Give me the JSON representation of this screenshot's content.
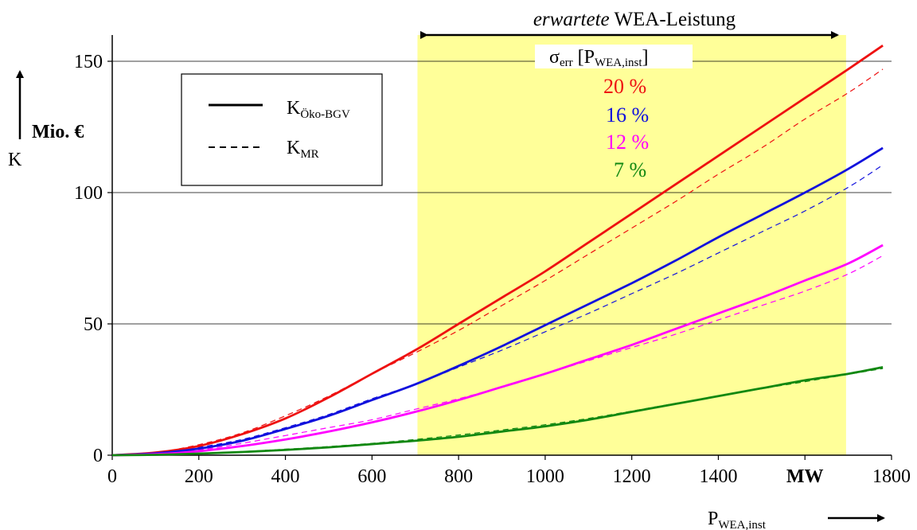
{
  "chart_data": {
    "type": "line",
    "x_ticks": [
      "0",
      "200",
      "400",
      "600",
      "800",
      "1000",
      "1200",
      "1400",
      "MW",
      "1800"
    ],
    "x_tick_values": [
      0,
      200,
      400,
      600,
      800,
      1000,
      1200,
      1400,
      1600,
      1800
    ],
    "y_ticks": [
      "0",
      "50",
      "100",
      "150"
    ],
    "y_tick_values": [
      0,
      50,
      100,
      150
    ],
    "xlim": [
      0,
      1800
    ],
    "ylim": [
      0,
      160
    ],
    "grid": {
      "horizontal": true,
      "values": [
        50,
        100,
        150
      ]
    },
    "ylabel": {
      "unit": "Mio. €",
      "symbol": "K"
    },
    "xlabel": {
      "base": "P",
      "sub": "WEA,inst"
    },
    "highlight": {
      "x_range": [
        705,
        1695
      ],
      "color": "#ffff99",
      "label_italic": "erwartete",
      "label_rest": " WEA-Leistung",
      "sigma_base": "σ",
      "sigma_sub": "err",
      "sigma_bracket_open": " [P",
      "sigma_bracket_sub": "WEA,inst",
      "sigma_bracket_close": "]"
    },
    "legend": {
      "position": "top-left",
      "solid": {
        "base": "K",
        "sub": "Öko-BGV"
      },
      "dashed": {
        "base": "K",
        "sub": "MR"
      }
    },
    "sigma_levels": [
      "20 %",
      "16 %",
      "12 %",
      "7 %"
    ],
    "series": [
      {
        "sigma": "20 %",
        "color": "#ee1111",
        "style": "solid",
        "x": [
          0,
          100,
          200,
          300,
          400,
          500,
          600,
          700,
          800,
          900,
          1000,
          1100,
          1200,
          1300,
          1400,
          1500,
          1600,
          1700,
          1780
        ],
        "y": [
          0,
          1,
          3.5,
          8,
          14,
          22,
          31,
          40,
          50,
          60,
          70,
          81,
          92,
          103,
          114,
          125,
          136,
          147,
          156
        ]
      },
      {
        "sigma": "20 %",
        "color": "#ee1111",
        "style": "dashed",
        "x": [
          0,
          100,
          200,
          300,
          400,
          500,
          600,
          700,
          800,
          900,
          1000,
          1100,
          1200,
          1300,
          1400,
          1500,
          1600,
          1700,
          1780
        ],
        "y": [
          0,
          1,
          4,
          8.5,
          15,
          22.5,
          31,
          39,
          47.5,
          57,
          66.5,
          76.5,
          86.5,
          96.5,
          107,
          117,
          128,
          138,
          147
        ]
      },
      {
        "sigma": "16 %",
        "color": "#1111dd",
        "style": "solid",
        "x": [
          0,
          100,
          200,
          300,
          400,
          500,
          600,
          700,
          800,
          900,
          1000,
          1100,
          1200,
          1300,
          1400,
          1500,
          1600,
          1700,
          1780
        ],
        "y": [
          0,
          0.7,
          2.5,
          5.5,
          10,
          15,
          21,
          27,
          34,
          41.5,
          49.5,
          57.5,
          65.5,
          74,
          83,
          91.5,
          100,
          109,
          117
        ]
      },
      {
        "sigma": "16 %",
        "color": "#1111dd",
        "style": "dashed",
        "x": [
          0,
          100,
          200,
          300,
          400,
          500,
          600,
          700,
          800,
          900,
          1000,
          1100,
          1200,
          1300,
          1400,
          1500,
          1600,
          1700,
          1780
        ],
        "y": [
          0,
          0.8,
          3,
          6,
          10.5,
          15.5,
          21.5,
          27,
          33.5,
          40,
          47,
          54,
          61.5,
          69,
          77,
          85,
          93,
          102,
          110.5
        ]
      },
      {
        "sigma": "12 %",
        "color": "#ff00ff",
        "style": "solid",
        "x": [
          0,
          100,
          200,
          300,
          400,
          500,
          600,
          700,
          800,
          900,
          1000,
          1100,
          1200,
          1300,
          1400,
          1500,
          1600,
          1700,
          1780
        ],
        "y": [
          0,
          0.4,
          1.5,
          3.5,
          6,
          9,
          12.5,
          16.5,
          21,
          26,
          31,
          36.5,
          42,
          48,
          54,
          60,
          66.5,
          73,
          80
        ]
      },
      {
        "sigma": "12 %",
        "color": "#ff00ff",
        "style": "dashed",
        "x": [
          0,
          100,
          200,
          300,
          400,
          500,
          600,
          700,
          800,
          900,
          1000,
          1100,
          1200,
          1300,
          1400,
          1500,
          1600,
          1700,
          1780
        ],
        "y": [
          0,
          0.5,
          2,
          4.5,
          7.5,
          10.5,
          13.5,
          17.5,
          21.5,
          26,
          31,
          36,
          41,
          46,
          51.5,
          57,
          62.5,
          69,
          76
        ]
      },
      {
        "sigma": "7 %",
        "color": "#118811",
        "style": "solid",
        "x": [
          0,
          100,
          200,
          300,
          400,
          500,
          600,
          700,
          800,
          900,
          1000,
          1100,
          1200,
          1300,
          1400,
          1500,
          1600,
          1700,
          1780
        ],
        "y": [
          0,
          0.15,
          0.6,
          1.2,
          2,
          3,
          4.2,
          5.5,
          7,
          9,
          11,
          13.5,
          16.5,
          19.5,
          22.5,
          25.5,
          28.5,
          31,
          33.5
        ]
      },
      {
        "sigma": "7 %",
        "color": "#118811",
        "style": "dashed",
        "x": [
          0,
          100,
          200,
          300,
          400,
          500,
          600,
          700,
          800,
          900,
          1000,
          1100,
          1200,
          1300,
          1400,
          1500,
          1600,
          1700,
          1780
        ],
        "y": [
          0,
          0.2,
          0.7,
          1.4,
          2.3,
          3.3,
          4.5,
          6,
          7.7,
          9.6,
          11.6,
          14,
          16.8,
          19.7,
          22.5,
          25.3,
          28,
          30.8,
          33
        ]
      }
    ],
    "sigma_label_colors": [
      "#ee1111",
      "#1111dd",
      "#ff00ff",
      "#118811"
    ]
  }
}
